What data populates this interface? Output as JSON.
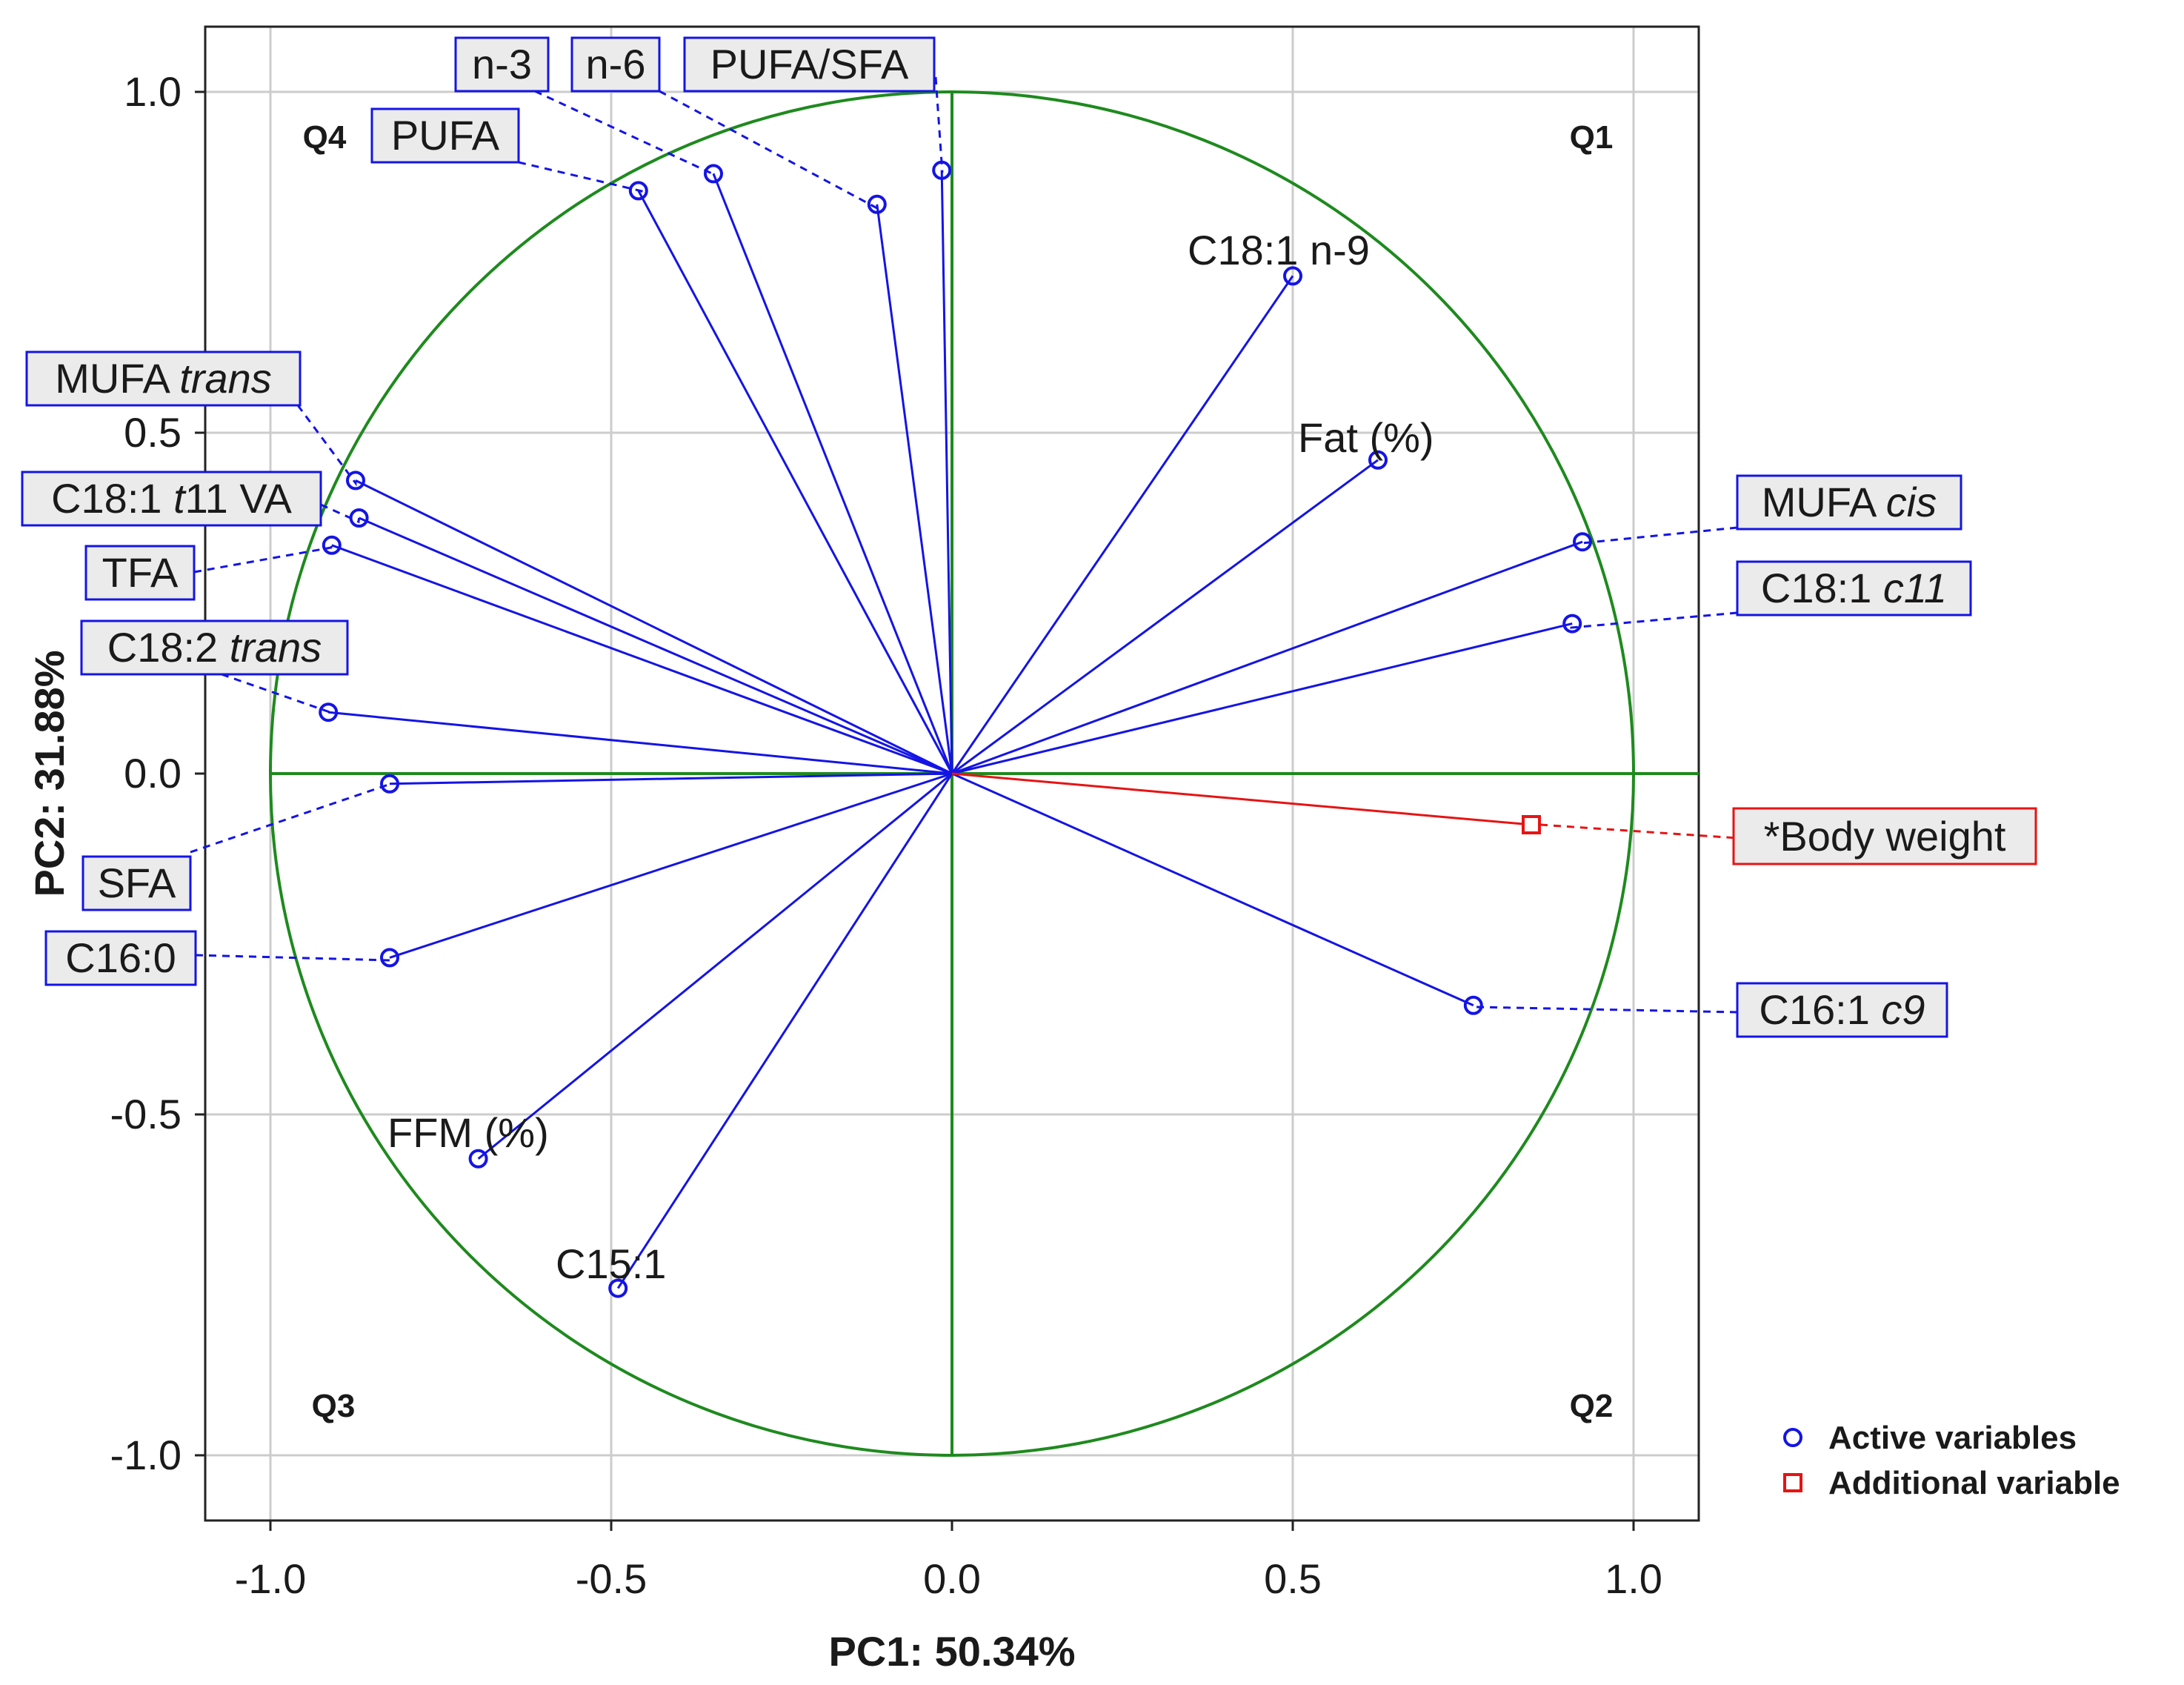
{
  "chart_data": {
    "type": "scatter",
    "subtype": "pca-correlation-circle",
    "xlabel": "PC1: 50.34%",
    "ylabel": "PC2: 31.88%",
    "xlim": [
      -1.1,
      1.1
    ],
    "ylim": [
      -1.1,
      1.1
    ],
    "xticks": [
      "-1.0",
      "-0.5",
      "0.0",
      "0.5",
      "1.0"
    ],
    "yticks": [
      "1.0",
      "0.5",
      "0.0",
      "-0.5",
      "-1.0"
    ],
    "grid": true,
    "unit_circle": true,
    "quadrants": [
      "Q1",
      "Q2",
      "Q3",
      "Q4"
    ],
    "colors": {
      "active": "#1414e6",
      "additional": "#e61414",
      "circle": "#1e8a1e",
      "grid": "#cccccc"
    },
    "legend": {
      "position": "bottom-right",
      "items": [
        {
          "name": "Active variables",
          "marker": "circle"
        },
        {
          "name": "Additional variable",
          "marker": "square"
        }
      ]
    },
    "series": [
      {
        "name": "Active variables",
        "points": [
          {
            "label": "PUFA",
            "italic": "",
            "x": -0.46,
            "y": 0.855,
            "boxed": true
          },
          {
            "label": "n-3",
            "italic": "",
            "x": -0.35,
            "y": 0.88,
            "boxed": true
          },
          {
            "label": "n-6",
            "italic": "",
            "x": -0.11,
            "y": 0.835,
            "boxed": true
          },
          {
            "label": "PUFA/SFA",
            "italic": "",
            "x": -0.015,
            "y": 0.885,
            "boxed": true
          },
          {
            "label": "C18:1 n-9",
            "italic": "",
            "x": 0.5,
            "y": 0.73,
            "boxed": false
          },
          {
            "label": "Fat (%)",
            "italic": "",
            "x": 0.625,
            "y": 0.46,
            "boxed": false
          },
          {
            "label": "MUFA ",
            "italic": "cis",
            "x": 0.925,
            "y": 0.34,
            "boxed": true
          },
          {
            "label": "C18:1 ",
            "italic": "c11",
            "x": 0.91,
            "y": 0.22,
            "boxed": true
          },
          {
            "label": "C16:1 ",
            "italic": "c9",
            "x": 0.765,
            "y": -0.34,
            "boxed": true
          },
          {
            "label": "C15:1",
            "italic": "",
            "x": -0.49,
            "y": -0.755,
            "boxed": false
          },
          {
            "label": "FFM (%)",
            "italic": "",
            "x": -0.695,
            "y": -0.565,
            "boxed": false
          },
          {
            "label": "C16:0",
            "italic": "",
            "x": -0.825,
            "y": -0.27,
            "boxed": true
          },
          {
            "label": "SFA",
            "italic": "",
            "x": -0.825,
            "y": -0.015,
            "boxed": true
          },
          {
            "label": "C18:2 ",
            "italic": "trans",
            "x": -0.915,
            "y": 0.09,
            "boxed": true
          },
          {
            "label": "TFA",
            "italic": "",
            "x": -0.91,
            "y": 0.335,
            "boxed": true
          },
          {
            "label": "C18:1 t11 VA",
            "italic": "",
            "x": -0.87,
            "y": 0.375,
            "boxed": true
          },
          {
            "label": "MUFA ",
            "italic": "trans",
            "x": -0.875,
            "y": 0.43,
            "boxed": true
          }
        ]
      },
      {
        "name": "Additional variable",
        "points": [
          {
            "label": "*Body weight",
            "italic": "",
            "x": 0.85,
            "y": -0.075,
            "boxed": true
          }
        ]
      }
    ]
  }
}
